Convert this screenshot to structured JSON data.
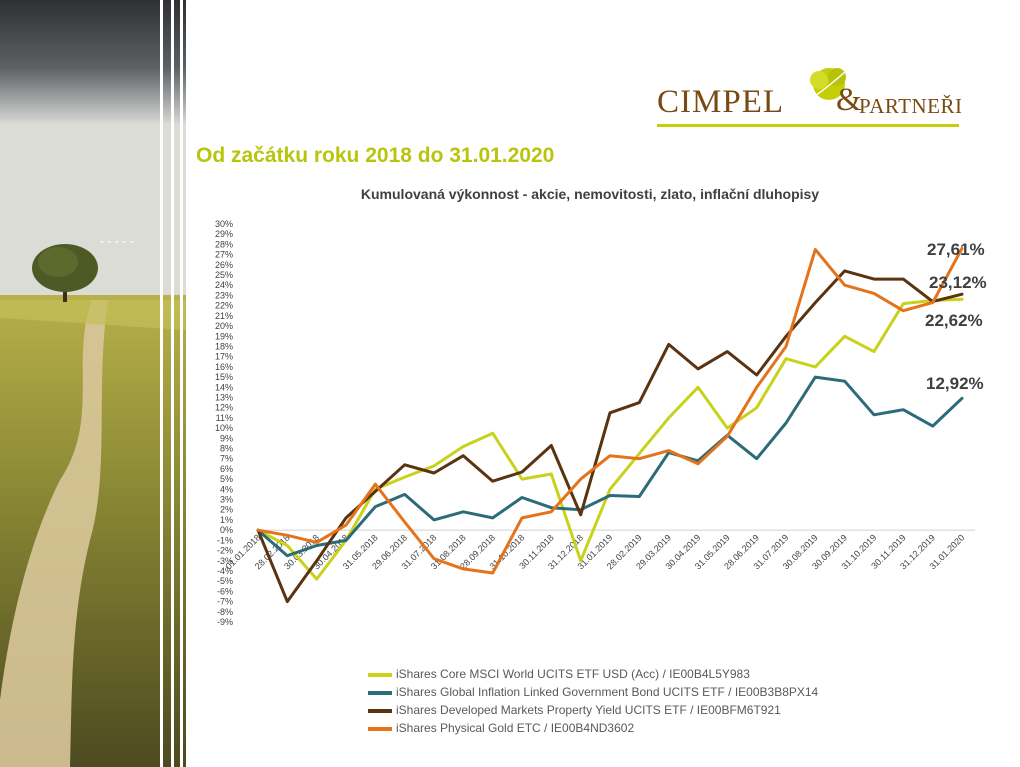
{
  "header": {
    "title": "Od začátku roku 2018 do 31.01.2020",
    "logo": {
      "cimpel": "CIMPEL",
      "ampersand": "&",
      "partneri": "PARTNEŘI"
    }
  },
  "colors": {
    "gold_accent": "#b9c40d",
    "logo_brown": "#7a4a14"
  },
  "chart_data": {
    "type": "line",
    "title": "Kumulovaná výkonnost - akcie, nemovitosti, zlato, inflační dluhopisy",
    "xlabel": "",
    "ylabel": "",
    "ylim": [
      -9,
      30
    ],
    "y_ticks": [
      "30%",
      "29%",
      "28%",
      "27%",
      "26%",
      "25%",
      "24%",
      "23%",
      "22%",
      "21%",
      "20%",
      "19%",
      "18%",
      "17%",
      "16%",
      "15%",
      "14%",
      "13%",
      "12%",
      "11%",
      "10%",
      "9%",
      "8%",
      "7%",
      "6%",
      "5%",
      "4%",
      "3%",
      "2%",
      "1%",
      "0%",
      "-1%",
      "-2%",
      "-3%",
      "-4%",
      "-5%",
      "-6%",
      "-7%",
      "-8%",
      "-9%"
    ],
    "categories": [
      "01.01.2018",
      "28.02.2018",
      "30.03.2018",
      "30.04.2018",
      "31.05.2018",
      "29.06.2018",
      "31.07.2018",
      "31.08.2018",
      "28.09.2018",
      "31.10.2018",
      "30.11.2018",
      "31.12.2018",
      "31.01.2019",
      "28.02.2019",
      "29.03.2019",
      "30.04.2019",
      "31.05.2019",
      "28.06.2019",
      "31.07.2019",
      "30.08.2019",
      "30.09.2019",
      "31.10.2019",
      "30.11.2019",
      "31.12.2019",
      "31.01.2020"
    ],
    "grid": false,
    "legend_position": "bottom",
    "series": [
      {
        "name": "iShares Core MSCI World UCITS ETF USD (Acc) / IE00B4L5Y983",
        "color": "#c8d21b",
        "values": [
          0.0,
          -1.5,
          -4.8,
          -1.0,
          4.0,
          5.2,
          6.3,
          8.2,
          9.5,
          5.0,
          5.5,
          -3.0,
          4.0,
          7.5,
          11.0,
          14.0,
          10.0,
          12.0,
          16.8,
          16.0,
          19.0,
          17.5,
          22.2,
          22.5,
          22.62
        ]
      },
      {
        "name": "iShares Global Inflation Linked Government Bond UCITS ETF / IE00B3B8PX14",
        "color": "#2c6b7a",
        "values": [
          0.0,
          -2.5,
          -1.5,
          -1.0,
          2.3,
          3.5,
          1.0,
          1.8,
          1.2,
          3.2,
          2.2,
          2.0,
          3.4,
          3.3,
          7.6,
          6.8,
          9.3,
          7.0,
          10.5,
          15.0,
          14.6,
          11.3,
          11.8,
          10.2,
          12.92
        ]
      },
      {
        "name": "iShares Developed Markets Property Yield UCITS ETF / IE00BFM6T921",
        "color": "#5a3310",
        "values": [
          0.0,
          -7.0,
          -3.0,
          1.2,
          3.8,
          6.4,
          5.6,
          7.3,
          4.8,
          5.7,
          8.3,
          1.5,
          11.5,
          12.5,
          18.2,
          15.8,
          17.5,
          15.2,
          19.0,
          22.3,
          25.4,
          24.6,
          24.6,
          22.4,
          23.12
        ]
      },
      {
        "name": "iShares Physical Gold ETC / IE00B4ND3602",
        "color": "#e4731b",
        "values": [
          0.0,
          -0.5,
          -1.2,
          0.5,
          4.5,
          0.8,
          -2.8,
          -3.8,
          -4.2,
          1.2,
          1.8,
          5.0,
          7.3,
          7.0,
          7.8,
          6.5,
          9.2,
          14.0,
          18.0,
          27.5,
          24.0,
          23.2,
          21.5,
          22.3,
          27.61
        ]
      }
    ],
    "callouts": [
      "27,61%",
      "23,12%",
      "22,62%",
      "12,92%"
    ]
  }
}
